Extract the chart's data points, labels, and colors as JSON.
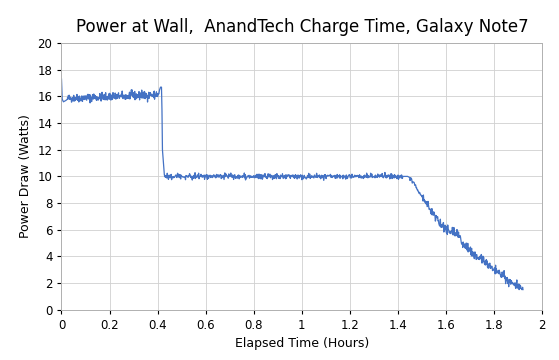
{
  "title": "Power at Wall,  AnandTech Charge Time, Galaxy Note7",
  "xlabel": "Elapsed Time (Hours)",
  "ylabel": "Power Draw (Watts)",
  "xlim": [
    0,
    2.0
  ],
  "ylim": [
    0,
    20
  ],
  "xticks": [
    0,
    0.2,
    0.4,
    0.6,
    0.8,
    1.0,
    1.2,
    1.4,
    1.6,
    1.8,
    2.0
  ],
  "yticks": [
    0,
    2,
    4,
    6,
    8,
    10,
    12,
    14,
    16,
    18,
    20
  ],
  "line_color": "#4472C4",
  "background_color": "#ffffff",
  "plot_bg_color": "#ffffff",
  "grid_color": "#d0d0d0",
  "title_fontsize": 12,
  "label_fontsize": 9,
  "tick_fontsize": 8.5
}
